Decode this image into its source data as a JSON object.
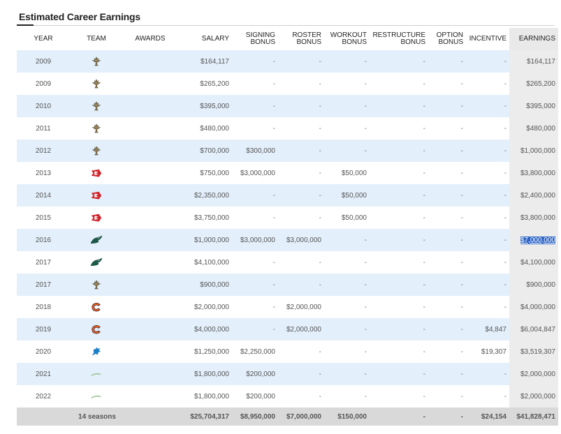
{
  "section": {
    "title": "Estimated Career Earnings"
  },
  "columns": [
    {
      "key": "year",
      "label": "YEAR"
    },
    {
      "key": "team",
      "label": "TEAM"
    },
    {
      "key": "awards",
      "label": "AWARDS"
    },
    {
      "key": "salary",
      "label": "SALARY"
    },
    {
      "key": "signing",
      "label1": "SIGNING",
      "label2": "BONUS"
    },
    {
      "key": "roster",
      "label1": "ROSTER",
      "label2": "BONUS"
    },
    {
      "key": "workout",
      "label1": "WORKOUT",
      "label2": "BONUS"
    },
    {
      "key": "restructure",
      "label1": "RESTRUCTURE",
      "label2": "BONUS"
    },
    {
      "key": "option",
      "label1": "OPTION",
      "label2": "BONUS"
    },
    {
      "key": "incentive",
      "label": "INCENTIVE"
    },
    {
      "key": "earnings",
      "label": "EARNINGS"
    }
  ],
  "rows": [
    {
      "year": "2009",
      "team_icon": "saints-logo-icon",
      "awards": "",
      "salary": "$164,117",
      "signing": "-",
      "roster": "-",
      "workout": "-",
      "restructure": "-",
      "option": "-",
      "incentive": "-",
      "earnings": "$164,117"
    },
    {
      "year": "2009",
      "team_icon": "saints-logo-icon",
      "awards": "",
      "salary": "$265,200",
      "signing": "-",
      "roster": "-",
      "workout": "-",
      "restructure": "-",
      "option": "-",
      "incentive": "-",
      "earnings": "$265,200"
    },
    {
      "year": "2010",
      "team_icon": "saints-logo-icon",
      "awards": "",
      "salary": "$395,000",
      "signing": "-",
      "roster": "-",
      "workout": "-",
      "restructure": "-",
      "option": "-",
      "incentive": "-",
      "earnings": "$395,000"
    },
    {
      "year": "2011",
      "team_icon": "saints-logo-icon",
      "awards": "",
      "salary": "$480,000",
      "signing": "-",
      "roster": "-",
      "workout": "-",
      "restructure": "-",
      "option": "-",
      "incentive": "-",
      "earnings": "$480,000"
    },
    {
      "year": "2012",
      "team_icon": "saints-logo-icon",
      "awards": "",
      "salary": "$700,000",
      "signing": "$300,000",
      "roster": "-",
      "workout": "-",
      "restructure": "-",
      "option": "-",
      "incentive": "-",
      "earnings": "$1,000,000"
    },
    {
      "year": "2013",
      "team_icon": "chiefs-logo-icon",
      "awards": "",
      "salary": "$750,000",
      "signing": "$3,000,000",
      "roster": "-",
      "workout": "$50,000",
      "restructure": "-",
      "option": "-",
      "incentive": "-",
      "earnings": "$3,800,000"
    },
    {
      "year": "2014",
      "team_icon": "chiefs-logo-icon",
      "awards": "",
      "salary": "$2,350,000",
      "signing": "-",
      "roster": "-",
      "workout": "$50,000",
      "restructure": "-",
      "option": "-",
      "incentive": "-",
      "earnings": "$2,400,000"
    },
    {
      "year": "2015",
      "team_icon": "chiefs-logo-icon",
      "awards": "",
      "salary": "$3,750,000",
      "signing": "-",
      "roster": "-",
      "workout": "$50,000",
      "restructure": "-",
      "option": "-",
      "incentive": "-",
      "earnings": "$3,800,000"
    },
    {
      "year": "2016",
      "team_icon": "eagles-logo-icon",
      "awards": "",
      "salary": "$1,000,000",
      "signing": "$3,000,000",
      "roster": "$3,000,000",
      "workout": "-",
      "restructure": "-",
      "option": "-",
      "incentive": "-",
      "earnings": "$7,000,000",
      "selected": true
    },
    {
      "year": "2017",
      "team_icon": "eagles-logo-icon",
      "awards": "",
      "salary": "$4,100,000",
      "signing": "-",
      "roster": "-",
      "workout": "-",
      "restructure": "-",
      "option": "-",
      "incentive": "-",
      "earnings": "$4,100,000"
    },
    {
      "year": "2017",
      "team_icon": "saints-logo-icon",
      "awards": "",
      "salary": "$900,000",
      "signing": "-",
      "roster": "-",
      "workout": "-",
      "restructure": "-",
      "option": "-",
      "incentive": "-",
      "earnings": "$900,000"
    },
    {
      "year": "2018",
      "team_icon": "bears-logo-icon",
      "awards": "",
      "salary": "$2,000,000",
      "signing": "-",
      "roster": "$2,000,000",
      "workout": "-",
      "restructure": "-",
      "option": "-",
      "incentive": "-",
      "earnings": "$4,000,000"
    },
    {
      "year": "2019",
      "team_icon": "bears-logo-icon",
      "awards": "",
      "salary": "$4,000,000",
      "signing": "-",
      "roster": "$2,000,000",
      "workout": "-",
      "restructure": "-",
      "option": "-",
      "incentive": "$4,847",
      "earnings": "$6,004,847"
    },
    {
      "year": "2020",
      "team_icon": "lions-logo-icon",
      "awards": "",
      "salary": "$1,250,000",
      "signing": "$2,250,000",
      "roster": "-",
      "workout": "-",
      "restructure": "-",
      "option": "-",
      "incentive": "$19,307",
      "earnings": "$3,519,307"
    },
    {
      "year": "2021",
      "team_icon": "chargers-logo-icon",
      "awards": "",
      "salary": "$1,800,000",
      "signing": "$200,000",
      "roster": "-",
      "workout": "-",
      "restructure": "-",
      "option": "-",
      "incentive": "-",
      "earnings": "$2,000,000"
    },
    {
      "year": "2022",
      "team_icon": "chargers-logo-icon",
      "awards": "",
      "salary": "$1,800,000",
      "signing": "$200,000",
      "roster": "-",
      "workout": "-",
      "restructure": "-",
      "option": "-",
      "incentive": "-",
      "earnings": "$2,000,000"
    }
  ],
  "totals": {
    "label": "14 seasons",
    "salary": "$25,704,317",
    "signing": "$8,950,000",
    "roster": "$7,000,000",
    "workout": "$150,000",
    "restructure": "-",
    "option": "-",
    "incentive": "$24,154",
    "earnings": "$41,828,471"
  },
  "colors": {
    "row_alt": "#e3effb",
    "earnings_col": "#ececec",
    "footer": "#d9d9d9",
    "selection": "#2b63c6",
    "saints": "#9a8559",
    "chiefs": "#d0262e",
    "eagles": "#1c5a4a",
    "bears": "#dd5b26",
    "lions": "#1c7fc4",
    "chargers": "#a7c8a0"
  }
}
